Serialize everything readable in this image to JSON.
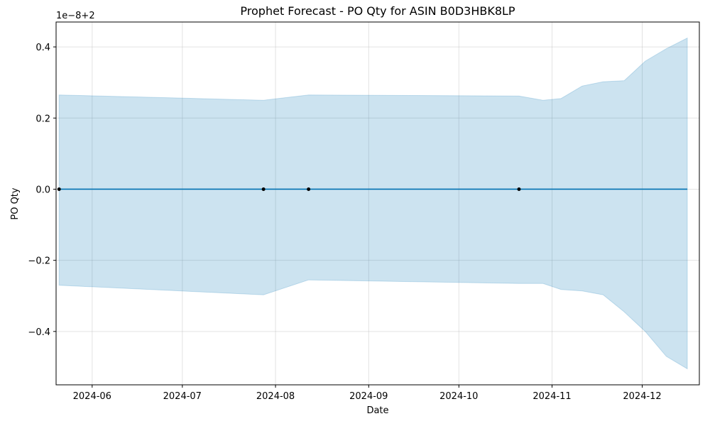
{
  "chart_data": {
    "type": "line",
    "title": "Prophet Forecast - PO Qty for ASIN B0D3HBK8LP",
    "xlabel": "Date",
    "ylabel": "PO Qty",
    "y_offset_label": "1e−8+2",
    "x_range": [
      "2024-05-20",
      "2024-12-20"
    ],
    "ylim": [
      -0.55,
      0.47
    ],
    "grid": true,
    "x_ticks": [
      {
        "date": "2024-06-01",
        "label": "2024-06"
      },
      {
        "date": "2024-07-01",
        "label": "2024-07"
      },
      {
        "date": "2024-08-01",
        "label": "2024-08"
      },
      {
        "date": "2024-09-01",
        "label": "2024-09"
      },
      {
        "date": "2024-10-01",
        "label": "2024-10"
      },
      {
        "date": "2024-11-01",
        "label": "2024-11"
      },
      {
        "date": "2024-12-01",
        "label": "2024-12"
      }
    ],
    "y_ticks": [
      {
        "value": 0.4,
        "label": "0.4"
      },
      {
        "value": 0.2,
        "label": "0.2"
      },
      {
        "value": 0.0,
        "label": "0.0"
      },
      {
        "value": -0.2,
        "label": "−0.2"
      },
      {
        "value": -0.4,
        "label": "−0.4"
      }
    ],
    "series": [
      {
        "kind": "uncertainty_band",
        "color": "#0072B2",
        "opacity": 0.2,
        "dates": [
          "2024-05-21",
          "2024-07-28",
          "2024-08-12",
          "2024-10-21",
          "2024-10-29",
          "2024-11-04",
          "2024-11-11",
          "2024-11-18",
          "2024-11-25",
          "2024-12-02",
          "2024-12-09",
          "2024-12-16"
        ],
        "upper": [
          0.265,
          0.25,
          0.265,
          0.262,
          0.25,
          0.255,
          0.29,
          0.302,
          0.305,
          0.36,
          0.395,
          0.425
        ],
        "lower": [
          -0.27,
          -0.297,
          -0.255,
          -0.265,
          -0.265,
          -0.282,
          -0.286,
          -0.297,
          -0.345,
          -0.4,
          -0.47,
          -0.505
        ]
      },
      {
        "kind": "forecast_line",
        "color": "#0072B2",
        "dates": [
          "2024-05-21",
          "2024-12-16"
        ],
        "values": [
          0.0,
          0.0
        ]
      },
      {
        "kind": "observed_points",
        "color": "#000000",
        "dates": [
          "2024-05-21",
          "2024-07-28",
          "2024-08-12",
          "2024-10-21"
        ],
        "values": [
          0.0,
          0.0,
          0.0,
          0.0
        ]
      }
    ]
  }
}
